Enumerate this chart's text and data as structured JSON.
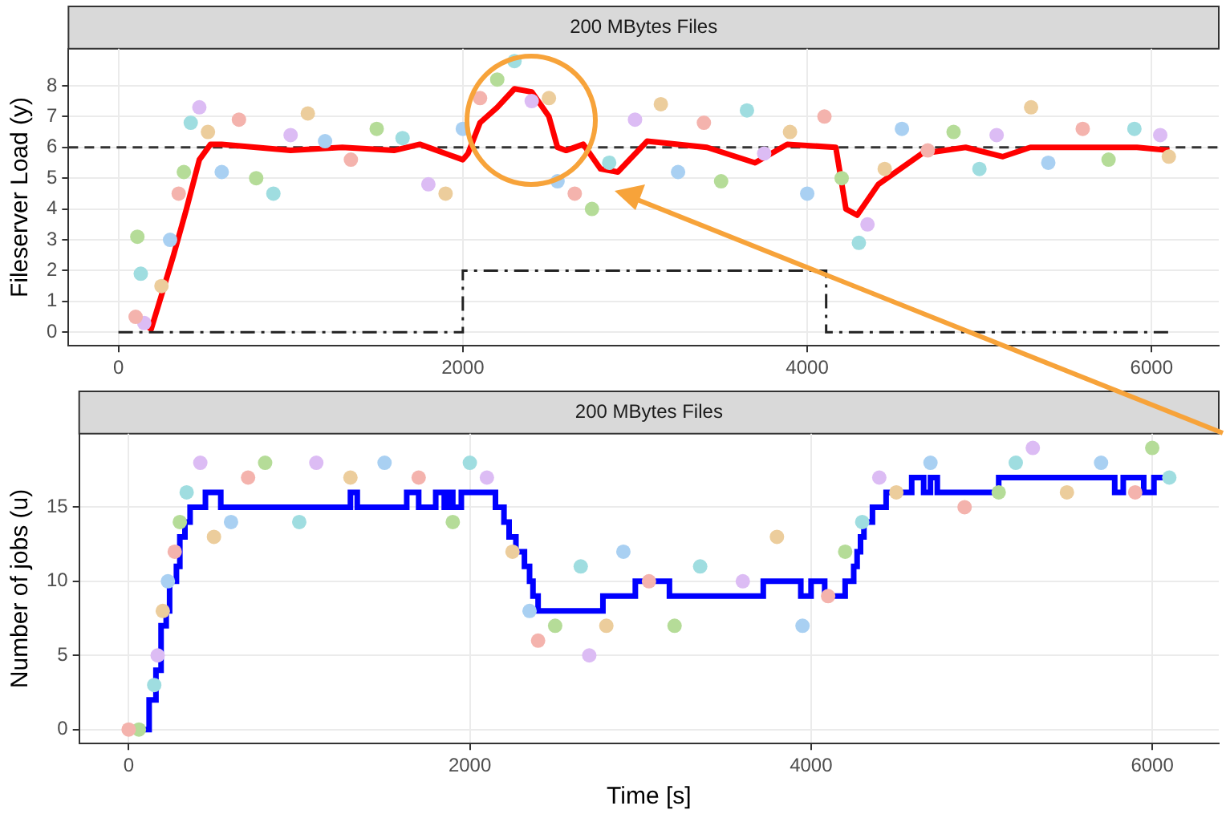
{
  "chart_data": [
    {
      "type": "line",
      "title": "200 MBytes Files",
      "ylabel": "Fileserver Load (y)",
      "xlim": [
        -290,
        6390
      ],
      "xticks": [
        0,
        2000,
        4000,
        6000
      ],
      "ylim": [
        -0.44,
        9.2
      ],
      "yticks": [
        0,
        1,
        2,
        3,
        4,
        5,
        6,
        7,
        8
      ],
      "grid": true,
      "legend": false,
      "ref_lines": [
        {
          "axis": "y",
          "value": 6,
          "color": "#333333",
          "line_style": "dashed"
        }
      ],
      "series": [
        {
          "type": "scatter",
          "color": "#f4b3ad",
          "x": [
            100,
            350,
            700,
            1350,
            2100,
            2650,
            3400,
            4100,
            4700,
            5600
          ],
          "values": [
            0.5,
            4.5,
            6.9,
            5.6,
            7.6,
            4.5,
            6.8,
            7.0,
            5.9,
            6.6
          ]
        },
        {
          "type": "scatter",
          "color": "#b5dc98",
          "x": [
            110,
            380,
            800,
            1500,
            2200,
            2750,
            3500,
            4200,
            4850,
            5750
          ],
          "values": [
            3.1,
            5.2,
            5.0,
            6.6,
            8.2,
            4.0,
            4.9,
            5.0,
            6.5,
            5.6
          ]
        },
        {
          "type": "scatter",
          "color": "#9fdde0",
          "x": [
            130,
            420,
            900,
            1650,
            2300,
            2850,
            3650,
            4300,
            5000,
            5900
          ],
          "values": [
            1.9,
            6.8,
            4.5,
            6.3,
            8.8,
            5.5,
            7.2,
            2.9,
            5.3,
            6.6
          ]
        },
        {
          "type": "scatter",
          "color": "#dcbcf4",
          "x": [
            150,
            470,
            1000,
            1800,
            2400,
            3000,
            3750,
            4350,
            5100,
            6050
          ],
          "values": [
            0.3,
            7.3,
            6.4,
            4.8,
            7.5,
            6.9,
            5.8,
            3.5,
            6.4,
            6.4
          ]
        },
        {
          "type": "scatter",
          "color": "#eccd9c",
          "x": [
            250,
            520,
            1100,
            1900,
            2500,
            3150,
            3900,
            4450,
            5300,
            6100
          ],
          "values": [
            1.5,
            6.5,
            7.1,
            4.5,
            7.6,
            7.4,
            6.5,
            5.3,
            7.3,
            5.7
          ]
        },
        {
          "type": "scatter",
          "color": "#a9d0f2",
          "x": [
            300,
            600,
            1200,
            2000,
            2550,
            3250,
            4000,
            4550,
            5400
          ],
          "values": [
            3.0,
            5.2,
            6.2,
            6.6,
            4.9,
            5.2,
            4.5,
            6.6,
            5.5
          ]
        },
        {
          "type": "step",
          "color": "#222222",
          "line_style": "dashed",
          "x": [
            0,
            2000,
            4110,
            6100
          ],
          "values": [
            0,
            2,
            0,
            0
          ]
        },
        {
          "type": "line",
          "color": "#ff0000",
          "x": [
            113,
            190,
            250,
            320,
            395,
            470,
            535,
            600,
            800,
            1000,
            1300,
            1600,
            1750,
            1900,
            2000,
            2030,
            2100,
            2200,
            2300,
            2400,
            2500,
            2550,
            2600,
            2700,
            2800,
            2900,
            3070,
            3418,
            3697,
            3884,
            4166,
            4225,
            4290,
            4413,
            4667,
            4920,
            5136,
            5296,
            5915,
            6103
          ],
          "values": [
            0.4,
            0.1,
            1.2,
            2.5,
            4,
            5.6,
            6.1,
            6.1,
            6.0,
            5.9,
            6.0,
            5.9,
            6.1,
            5.8,
            5.6,
            5.8,
            6.8,
            7.3,
            7.9,
            7.8,
            7.0,
            6.0,
            5.9,
            6.1,
            5.3,
            5.2,
            6.2,
            6.0,
            5.5,
            6.1,
            6.0,
            4.0,
            3.8,
            4.8,
            5.8,
            6.0,
            5.7,
            6.0,
            6.0,
            5.9
          ]
        }
      ]
    },
    {
      "type": "line",
      "title": "200 MBytes Files",
      "xlabel": "Time [s]",
      "ylabel": "Number of jobs (u)",
      "xlim": [
        -290,
        6390
      ],
      "xticks": [
        0,
        2000,
        4000,
        6000
      ],
      "ylim": [
        -0.95,
        19.96
      ],
      "yticks": [
        0,
        5,
        10,
        15
      ],
      "grid": true,
      "legend": false,
      "series": [
        {
          "type": "scatter",
          "color": "#f4b3ad",
          "x": [
            0,
            270,
            700,
            1700,
            2400,
            3050,
            4100,
            4900,
            5900
          ],
          "values": [
            0,
            12,
            17,
            17,
            6,
            10,
            9,
            15,
            16
          ]
        },
        {
          "type": "scatter",
          "color": "#b5dc98",
          "x": [
            60,
            300,
            800,
            1900,
            2500,
            3200,
            4200,
            5100,
            6000
          ],
          "values": [
            0,
            14,
            18,
            14,
            7,
            7,
            12,
            16,
            19
          ]
        },
        {
          "type": "scatter",
          "color": "#9fdde0",
          "x": [
            150,
            340,
            1000,
            2000,
            2650,
            3350,
            4300,
            5200,
            6100
          ],
          "values": [
            3,
            16,
            14,
            18,
            11,
            11,
            14,
            18,
            17
          ]
        },
        {
          "type": "scatter",
          "color": "#dcbcf4",
          "x": [
            170,
            420,
            1100,
            2100,
            2700,
            3600,
            4400,
            5300
          ],
          "values": [
            5,
            18,
            18,
            17,
            5,
            10,
            17,
            19
          ]
        },
        {
          "type": "scatter",
          "color": "#eccd9c",
          "x": [
            200,
            500,
            1300,
            2250,
            2800,
            3800,
            4500,
            5500
          ],
          "values": [
            8,
            13,
            17,
            12,
            7,
            13,
            16,
            16
          ]
        },
        {
          "type": "scatter",
          "color": "#a9d0f2",
          "x": [
            230,
            600,
            1500,
            2350,
            2900,
            3950,
            4700,
            5700
          ],
          "values": [
            10,
            14,
            18,
            8,
            12,
            7,
            18,
            18
          ]
        },
        {
          "type": "step",
          "color": "#0000ff",
          "x": [
            40,
            120,
            160,
            190,
            220,
            240,
            280,
            300,
            330,
            360,
            450,
            540,
            1300,
            1340,
            1630,
            1700,
            1800,
            1850,
            1870,
            1900,
            1950,
            2150,
            2200,
            2230,
            2270,
            2320,
            2350,
            2370,
            2400,
            2780,
            2970,
            3170,
            3720,
            3940,
            4000,
            4080,
            4200,
            4250,
            4270,
            4290,
            4310,
            4360,
            4440,
            4590,
            4660,
            4700,
            4740,
            5100,
            5780,
            5830,
            5950,
            6010,
            6120
          ],
          "values": [
            0,
            2,
            4,
            7,
            8,
            10,
            11,
            13,
            14,
            15,
            16,
            15,
            16,
            15,
            16,
            15,
            16,
            15,
            16,
            15,
            16,
            15,
            14,
            13,
            12,
            11,
            10,
            9,
            8,
            9,
            10,
            9,
            10,
            9,
            10,
            9,
            10,
            11,
            12,
            13,
            14,
            15,
            16,
            17,
            16,
            17,
            16,
            17,
            16,
            17,
            16,
            17,
            17
          ]
        }
      ]
    }
  ]
}
